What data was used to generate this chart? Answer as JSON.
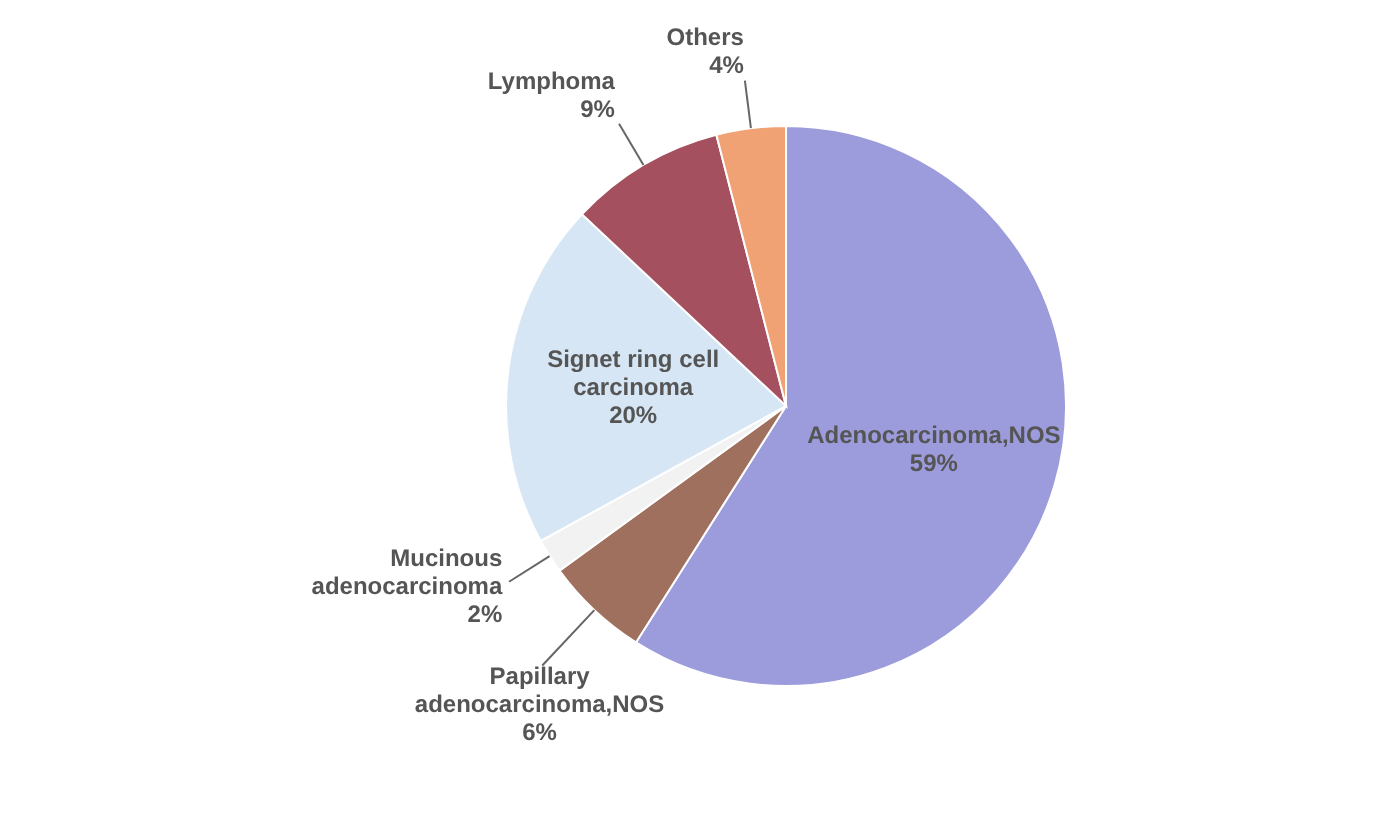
{
  "chart_data": {
    "type": "pie",
    "categories": [
      "Adenocarcinoma,NOS",
      "Papillary adenocarcinoma,NOS",
      "Mucinous adenocarcinoma",
      "Signet ring cell carcinoma",
      "Lymphoma",
      "Others"
    ],
    "values": [
      59,
      6,
      2,
      20,
      9,
      4
    ],
    "value_labels": [
      "59%",
      "6%",
      "2%",
      "20%",
      "9%",
      "4%"
    ],
    "colors": [
      "#9c9cdc",
      "#a0705e",
      "#f2f2f2",
      "#d6e6f4",
      "#a4505e",
      "#f0a274"
    ]
  }
}
